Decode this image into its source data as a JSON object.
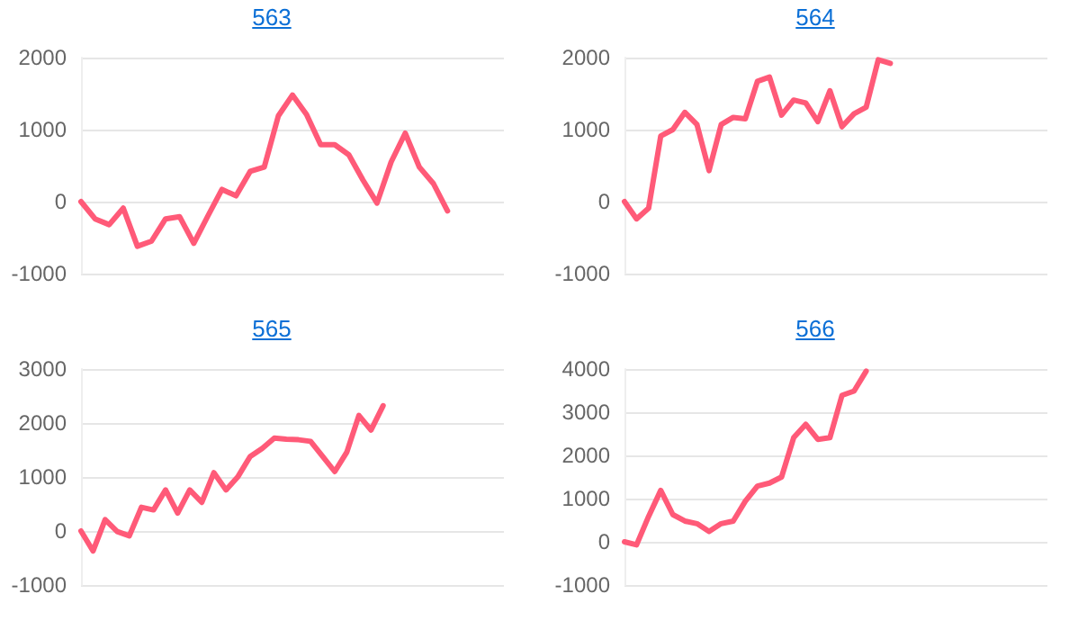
{
  "chart_data": [
    {
      "type": "line",
      "title": "563",
      "categories": [
        null,
        null,
        null,
        null,
        null,
        null,
        null,
        null,
        null,
        null,
        null,
        null,
        null,
        null,
        null,
        null,
        null,
        null,
        null,
        null,
        null,
        null,
        null,
        null,
        null,
        null,
        null,
        null,
        null,
        null,
        null
      ],
      "series": [
        {
          "color": "#ff5a78",
          "values": [
            0,
            -240,
            -320,
            -90,
            -620,
            -550,
            -240,
            -210,
            -580,
            -200,
            170,
            80,
            420,
            480,
            1190,
            1480,
            1210,
            790,
            790,
            650,
            300,
            -20,
            550,
            950,
            480,
            250,
            -130,
            null,
            null,
            null,
            null
          ]
        }
      ],
      "ylim": [
        -1000,
        2000
      ],
      "yticks": [
        -1000,
        0,
        1000,
        2000
      ],
      "grid": "y",
      "tick_labels": "y",
      "line_style": "solid"
    },
    {
      "type": "line",
      "title": "564",
      "categories": [
        null,
        null,
        null,
        null,
        null,
        null,
        null,
        null,
        null,
        null,
        null,
        null,
        null,
        null,
        null,
        null,
        null,
        null,
        null,
        null,
        null,
        null,
        null,
        null,
        null,
        null,
        null,
        null,
        null,
        null,
        null,
        null,
        null,
        null,
        null,
        null
      ],
      "series": [
        {
          "color": "#ff5a78",
          "values": [
            0,
            -240,
            -90,
            910,
            1000,
            1240,
            1070,
            430,
            1070,
            1170,
            1150,
            1670,
            1730,
            1200,
            1410,
            1370,
            1110,
            1540,
            1040,
            1220,
            1310,
            1970,
            1920,
            null,
            null,
            null,
            null,
            null,
            null,
            null,
            null,
            null,
            null,
            null,
            null,
            null
          ]
        }
      ],
      "ylim": [
        -1000,
        2000
      ],
      "yticks": [
        -1000,
        0,
        1000,
        2000
      ],
      "grid": "y",
      "tick_labels": "y",
      "line_style": "solid"
    },
    {
      "type": "line",
      "title": "565",
      "categories": [
        null,
        null,
        null,
        null,
        null,
        null,
        null,
        null,
        null,
        null,
        null,
        null,
        null,
        null,
        null,
        null,
        null,
        null,
        null,
        null,
        null,
        null,
        null,
        null,
        null,
        null,
        null,
        null,
        null,
        null,
        null,
        null,
        null,
        null,
        null,
        null
      ],
      "series": [
        {
          "color": "#ff5a78",
          "values": [
            0,
            -370,
            210,
            -10,
            -90,
            440,
            390,
            760,
            330,
            760,
            530,
            1080,
            760,
            1010,
            1380,
            1530,
            1720,
            1700,
            1690,
            1660,
            1380,
            1100,
            1460,
            2140,
            1870,
            2320,
            null,
            null,
            null,
            null,
            null,
            null,
            null,
            null,
            null,
            null
          ]
        }
      ],
      "ylim": [
        -1000,
        3000
      ],
      "yticks": [
        -1000,
        0,
        1000,
        2000,
        3000
      ],
      "grid": "y",
      "tick_labels": "y",
      "line_style": "solid"
    },
    {
      "type": "line",
      "title": "566",
      "categories": [
        null,
        null,
        null,
        null,
        null,
        null,
        null,
        null,
        null,
        null,
        null,
        null,
        null,
        null,
        null,
        null,
        null,
        null,
        null,
        null,
        null,
        null,
        null,
        null,
        null,
        null,
        null,
        null,
        null,
        null,
        null,
        null,
        null,
        null,
        null,
        null
      ],
      "series": [
        {
          "color": "#ff5a78",
          "values": [
            0,
            -70,
            590,
            1190,
            630,
            480,
            420,
            240,
            420,
            480,
            940,
            1290,
            1360,
            1500,
            2410,
            2720,
            2370,
            2410,
            3390,
            3490,
            3950,
            null,
            null,
            null,
            null,
            null,
            null,
            null,
            null,
            null,
            null,
            null,
            null,
            null,
            null,
            null
          ]
        }
      ],
      "ylim": [
        -1000,
        4000
      ],
      "yticks": [
        -1000,
        0,
        1000,
        2000,
        3000,
        4000
      ],
      "grid": "y",
      "tick_labels": "y",
      "line_style": "solid"
    }
  ]
}
